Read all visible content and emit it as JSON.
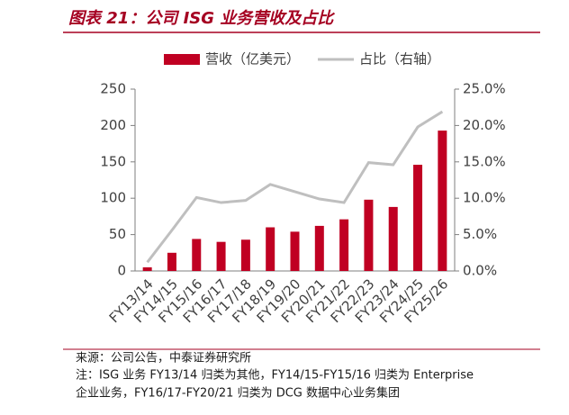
{
  "chart_data": {
    "type": "bar",
    "title": "图表 21：公司 ISG 业务营收及占比",
    "categories": [
      "FY13/14",
      "FY14/15",
      "FY15/16",
      "FY16/17",
      "FY17/18",
      "FY18/19",
      "FY19/20",
      "FY20/21",
      "FY21/22",
      "FY22/23",
      "FY23/24",
      "FY24/25",
      "FY25/26"
    ],
    "series": [
      {
        "name": "营收（亿美元）",
        "type": "bar",
        "color": "#c00022",
        "values": [
          5,
          25,
          44,
          40,
          43,
          60,
          54,
          62,
          71,
          98,
          88,
          146,
          193
        ]
      },
      {
        "name": "占比（右轴）",
        "type": "line",
        "axis": "y2",
        "color": "#bfbfbf",
        "values": [
          1.2,
          5.6,
          10.1,
          9.4,
          9.7,
          11.9,
          10.9,
          9.9,
          9.4,
          14.9,
          14.6,
          19.8,
          21.9
        ]
      }
    ],
    "ylim": [
      0,
      250
    ],
    "yticks": [
      0,
      50,
      100,
      150,
      200,
      250
    ],
    "y2lim": [
      0,
      25
    ],
    "y2ticks": [
      {
        "value": 0,
        "label": "0.0%"
      },
      {
        "value": 5,
        "label": "5.0%"
      },
      {
        "value": 10,
        "label": "10.0%"
      },
      {
        "value": 15,
        "label": "15.0%"
      },
      {
        "value": 20,
        "label": "20.0%"
      },
      {
        "value": 25,
        "label": "25.0%"
      }
    ],
    "legend": "top",
    "grid": false
  },
  "source": "来源：公司公告，中泰证券研究所",
  "notes": [
    "注：ISG 业务 FY13/14 归类为其他，FY14/15-FY15/16 归类为 Enterprise",
    "企业业务，FY16/17-FY20/21 归类为 DCG 数据中心业务集团"
  ]
}
